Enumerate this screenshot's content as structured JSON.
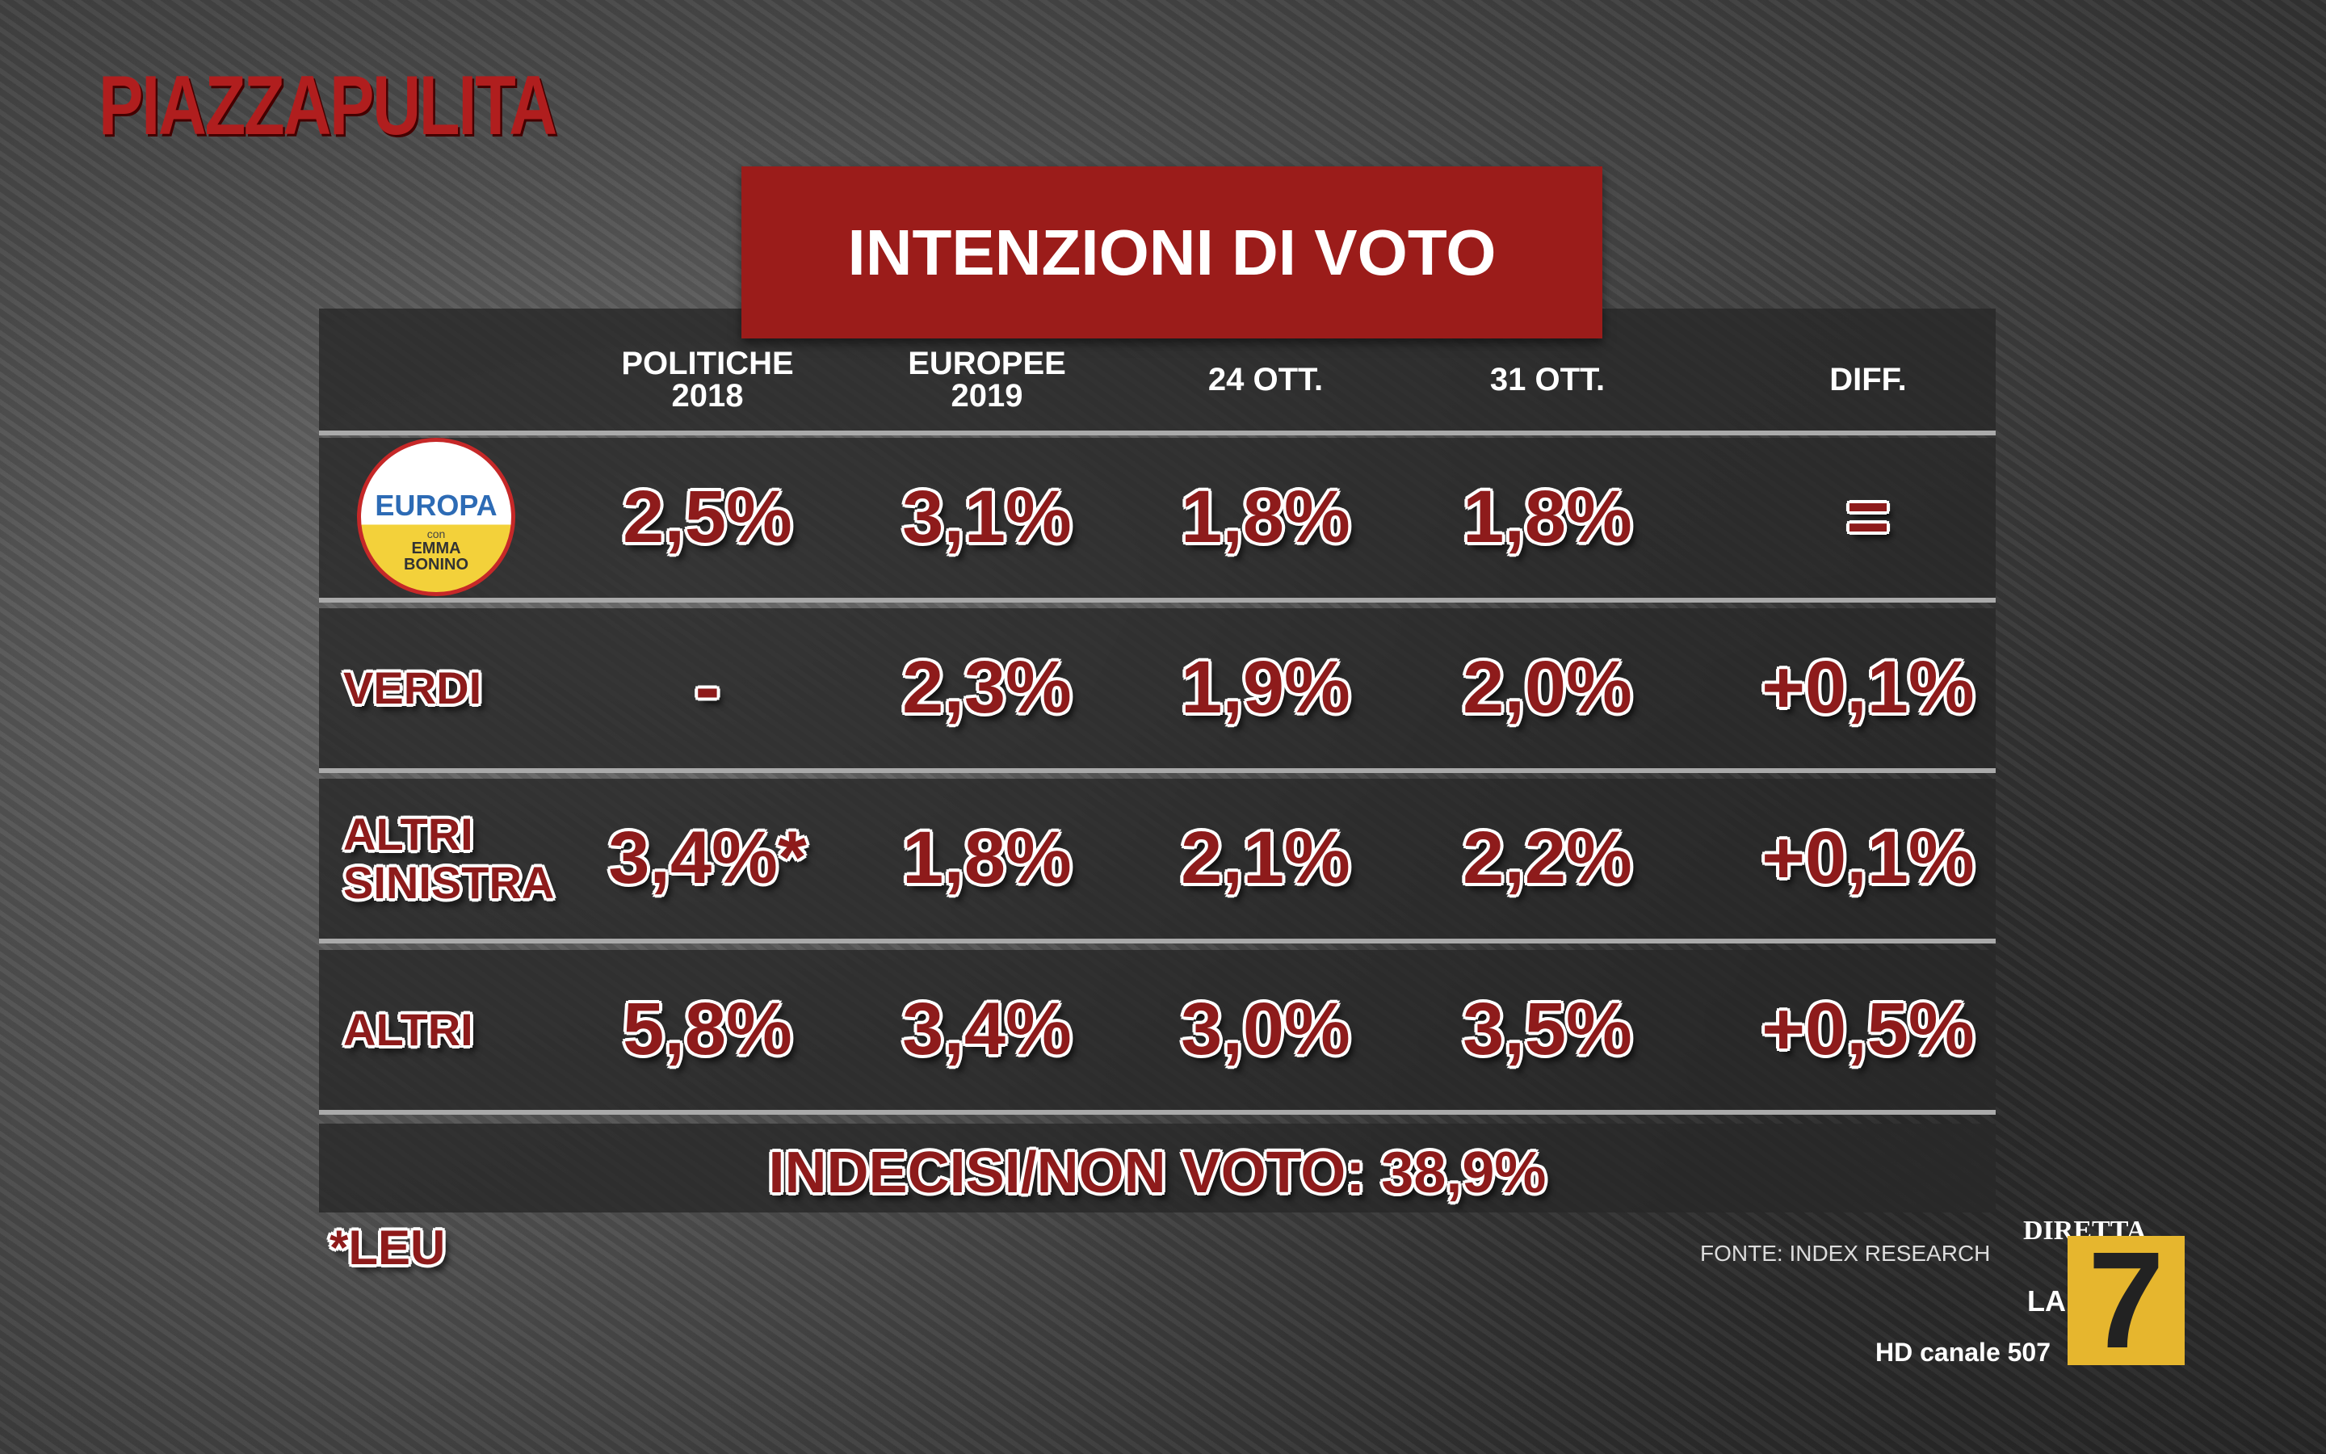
{
  "show": "PIAZZAPULITA",
  "title": "INTENZIONI DI VOTO",
  "table": {
    "header": [
      [
        "POLITICHE",
        "2018"
      ],
      [
        "EUROPEE",
        "2019"
      ],
      [
        "24 OTT."
      ],
      [
        "31 OTT."
      ],
      [
        "DIFF."
      ]
    ],
    "logo": {
      "name": "EUROPA",
      "with": "con",
      "leader": [
        "EMMA",
        "BONINO"
      ]
    },
    "rows": [
      {
        "label": null,
        "cells": [
          "2,5%",
          "3,1%",
          "1,8%",
          "1,8%",
          "="
        ]
      },
      {
        "label": [
          "VERDI"
        ],
        "cells": [
          "-",
          "2,3%",
          "1,9%",
          "2,0%",
          "+0,1%"
        ]
      },
      {
        "label": [
          "ALTRI",
          "SINISTRA"
        ],
        "cells": [
          "3,4%*",
          "1,8%",
          "2,1%",
          "2,2%",
          "+0,1%"
        ]
      },
      {
        "label": [
          "ALTRI"
        ],
        "cells": [
          "5,8%",
          "3,4%",
          "3,0%",
          "3,5%",
          "+0,5%"
        ]
      }
    ],
    "footer": "INDECISI/NON VOTO: 38,9%"
  },
  "note": "*LEU",
  "source": "FONTE: INDEX RESEARCH",
  "channel": {
    "live": "DIRETTA",
    "brand": "LA",
    "number": "7",
    "hd": "HD canale 507"
  }
}
